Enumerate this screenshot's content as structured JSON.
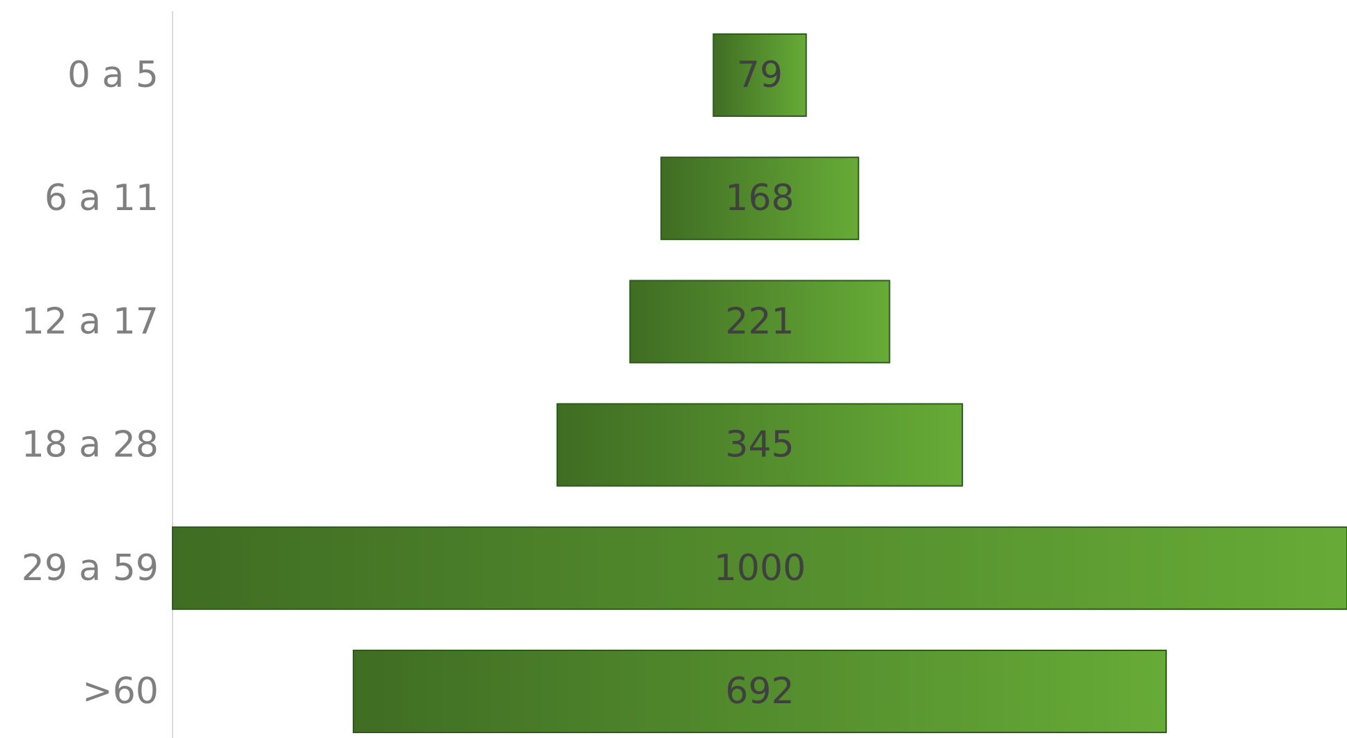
{
  "chart_data": {
    "type": "bar",
    "subtype": "funnel",
    "orientation": "horizontal",
    "categories": [
      "0 a 5",
      "6 a 11",
      "12 a 17",
      "18 a 28",
      "29 a 59",
      ">60"
    ],
    "values": [
      79,
      168,
      221,
      345,
      1000,
      692
    ],
    "data_labels": [
      "79",
      "168",
      "221",
      "345",
      "1000",
      "692"
    ],
    "title": "",
    "xlabel": "",
    "ylabel": "",
    "xlim": [
      0,
      1000
    ],
    "grid": false,
    "legend": "none",
    "colors": {
      "bar_dark": "#3f6d23",
      "bar_light": "#67ab37",
      "bar_border": "#2e5a1c",
      "category_text": "#7f7f7f",
      "value_text": "#404040",
      "axis": "#d9d9d9"
    }
  }
}
